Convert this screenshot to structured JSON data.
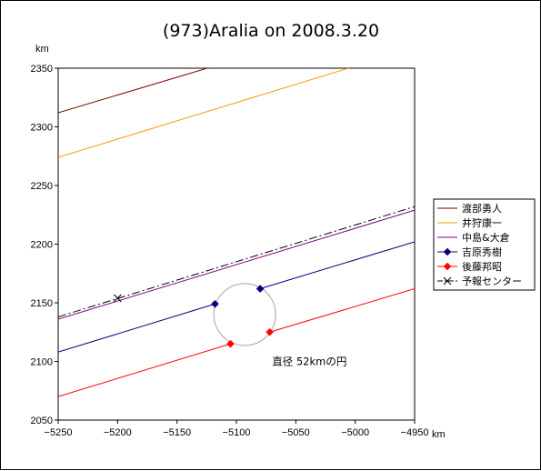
{
  "chart_data": {
    "type": "line",
    "title": "(973)Aralia on 2008.3.20",
    "xunit": "km",
    "yunit": "km",
    "xlim": [
      -5250,
      -4950
    ],
    "ylim": [
      2050,
      2350
    ],
    "xticks": [
      -5250,
      -5200,
      -5150,
      -5100,
      -5050,
      -5000,
      -4950
    ],
    "yticks": [
      2050,
      2100,
      2150,
      2200,
      2250,
      2300,
      2350
    ],
    "xtick_labels": [
      "−5250",
      "−5200",
      "−5150",
      "−5100",
      "−5050",
      "−5000",
      "−4950"
    ],
    "ytick_labels": [
      "2050",
      "2100",
      "2150",
      "2200",
      "2250",
      "2300",
      "2350"
    ],
    "grid": false,
    "legend_position": "right",
    "series": [
      {
        "name": "渡部勇人",
        "color": "#800000",
        "style": "solid",
        "marker": "none",
        "segments": [
          [
            [
              -5250,
              2312
            ],
            [
              -5118,
              2352
            ]
          ]
        ]
      },
      {
        "name": "井狩康一",
        "color": "#FF9900",
        "style": "solid",
        "marker": "none",
        "segments": [
          [
            [
              -5250,
              2274
            ],
            [
              -4996,
              2353
            ]
          ]
        ]
      },
      {
        "name": "中島&大倉",
        "color": "#800080",
        "style": "solid",
        "marker": "none",
        "segments": [
          [
            [
              -5250,
              2136
            ],
            [
              -4950,
              2229
            ]
          ]
        ]
      },
      {
        "name": "吉原秀樹",
        "color": "#000080",
        "style": "solid",
        "marker": "diamond",
        "segments": [
          [
            [
              -5250,
              2108
            ],
            [
              -5118,
              2149
            ]
          ],
          [
            [
              -5080,
              2162
            ],
            [
              -4950,
              2202
            ]
          ]
        ],
        "markers": [
          [
            -5118,
            2149
          ],
          [
            -5080,
            2162
          ]
        ]
      },
      {
        "name": "後藤邦昭",
        "color": "#FF0000",
        "style": "solid",
        "marker": "diamond",
        "segments": [
          [
            [
              -5250,
              2070
            ],
            [
              -5105,
              2115
            ]
          ],
          [
            [
              -5072,
              2125
            ],
            [
              -4950,
              2162
            ]
          ]
        ],
        "markers": [
          [
            -5105,
            2115
          ],
          [
            -5072,
            2125
          ]
        ]
      },
      {
        "name": "予報センター",
        "color": "#000000",
        "style": "dashdot",
        "marker": "x",
        "segments": [
          [
            [
              -5250,
              2138
            ],
            [
              -4950,
              2232
            ]
          ]
        ],
        "markers": [
          [
            -5200,
            2154
          ]
        ]
      }
    ],
    "circle": {
      "center": [
        -5093,
        2140
      ],
      "diameter": 52,
      "color": "#C0C0C0"
    },
    "annotation": {
      "text": "直径 52kmの円",
      "x": -5070,
      "y": 2100
    }
  }
}
